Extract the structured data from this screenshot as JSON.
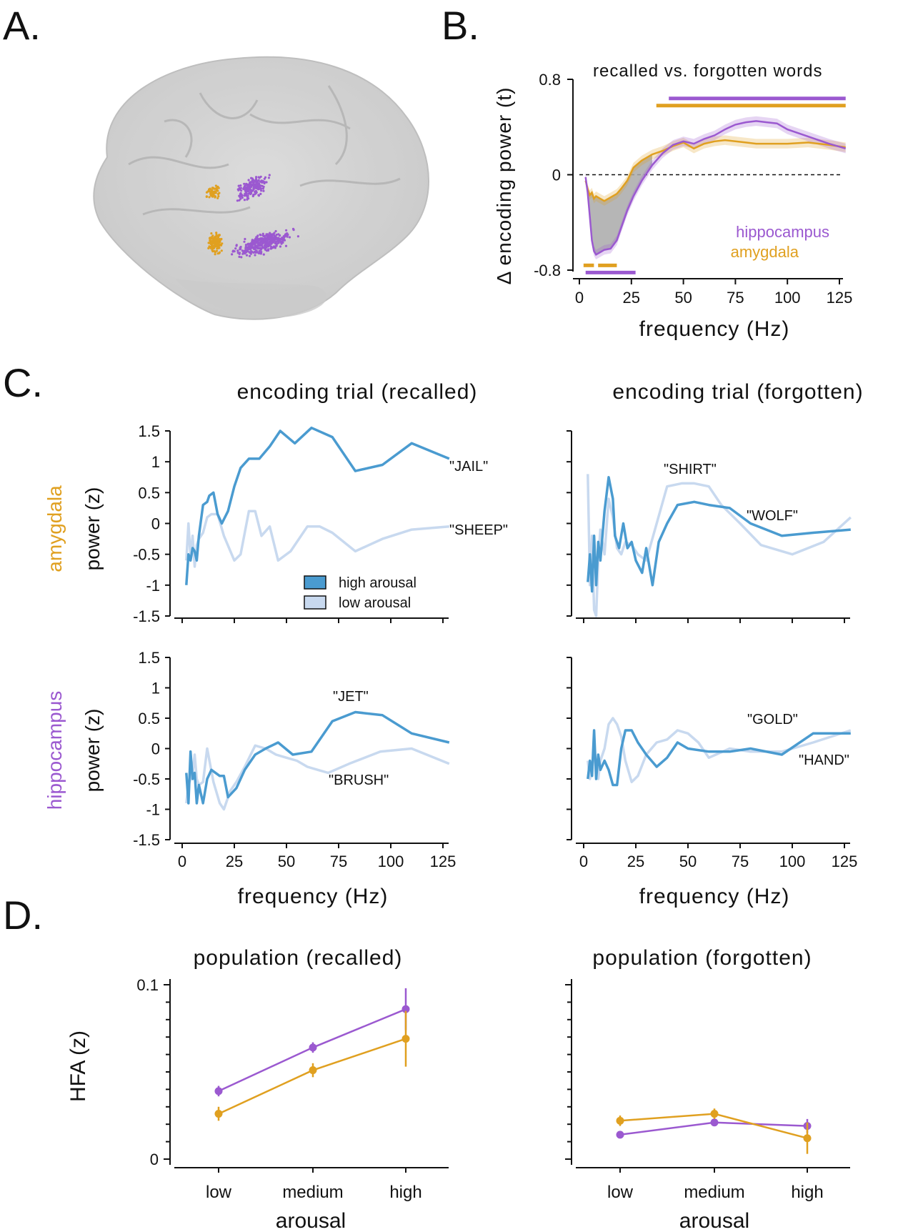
{
  "panels": {
    "a": "A.",
    "b": "B.",
    "c": "C.",
    "d": "D."
  },
  "colors": {
    "purple": "#9b59d0",
    "orange": "#e0a020",
    "blue_high": "#4a9bd0",
    "blue_low": "#c8d9ef",
    "shade": "#a9a9a9"
  },
  "panel_b": {
    "title": "recalled vs. forgotten words",
    "ylabel": "Δ encoding power (t)",
    "xlabel": "frequency (Hz)",
    "legend_hippocampus": "hippocampus",
    "legend_amygdala": "amygdala"
  },
  "panel_c": {
    "title_recalled": "encoding trial (recalled)",
    "title_forgotten": "encoding trial (forgotten)",
    "row_amygdala": "amygdala",
    "row_hippocampus": "hippocampus",
    "ylabel": "power (z)",
    "xlabel": "frequency (Hz)",
    "legend_high": "high arousal",
    "legend_low": "low arousal",
    "words": {
      "amy_rec_high": "\"JAIL\"",
      "amy_rec_low": "\"SHEEP\"",
      "amy_for_low": "\"SHIRT\"",
      "amy_for_high": "\"WOLF\"",
      "hip_rec_high": "\"JET\"",
      "hip_rec_low": "\"BRUSH\"",
      "hip_for_low": "\"GOLD\"",
      "hip_for_high": "\"HAND\""
    }
  },
  "panel_d": {
    "title_recalled": "population (recalled)",
    "title_forgotten": "population (forgotten)",
    "ylabel": "HFA (z)",
    "xlabel": "arousal"
  },
  "chart_data": [
    {
      "id": "B",
      "type": "line",
      "title": "recalled vs. forgotten words",
      "xlabel": "frequency (Hz)",
      "ylabel": "Δ encoding power (t)",
      "xlim": [
        -2,
        130
      ],
      "ylim": [
        -0.82,
        0.8
      ],
      "xticks": [
        0,
        25,
        50,
        75,
        100,
        125
      ],
      "yticks": [
        -0.8,
        0,
        0.8
      ],
      "series": [
        {
          "name": "hippocampus",
          "x": [
            3,
            4,
            5,
            6,
            7,
            8,
            10,
            12,
            15,
            18,
            20,
            23,
            26,
            30,
            35,
            40,
            45,
            50,
            55,
            60,
            65,
            70,
            75,
            80,
            85,
            90,
            95,
            100,
            110,
            120,
            128
          ],
          "y": [
            -0.02,
            -0.15,
            -0.35,
            -0.55,
            -0.64,
            -0.67,
            -0.65,
            -0.63,
            -0.62,
            -0.55,
            -0.45,
            -0.3,
            -0.18,
            -0.05,
            0.08,
            0.18,
            0.25,
            0.28,
            0.26,
            0.3,
            0.33,
            0.38,
            0.42,
            0.44,
            0.45,
            0.44,
            0.43,
            0.38,
            0.32,
            0.26,
            0.22
          ],
          "err": 0.04
        },
        {
          "name": "amygdala",
          "x": [
            3,
            4,
            5,
            6,
            7,
            8,
            10,
            12,
            15,
            18,
            20,
            23,
            26,
            30,
            35,
            40,
            45,
            50,
            55,
            60,
            65,
            70,
            75,
            80,
            85,
            90,
            95,
            100,
            110,
            120,
            128
          ],
          "y": [
            -0.05,
            -0.12,
            -0.17,
            -0.15,
            -0.2,
            -0.18,
            -0.2,
            -0.22,
            -0.19,
            -0.16,
            -0.12,
            -0.05,
            0.06,
            0.12,
            0.17,
            0.2,
            0.24,
            0.27,
            0.22,
            0.26,
            0.28,
            0.29,
            0.28,
            0.27,
            0.26,
            0.26,
            0.26,
            0.26,
            0.27,
            0.25,
            0.23
          ],
          "err": 0.04
        }
      ],
      "significance_bars": [
        {
          "series": "hippocampus",
          "x": [
            43,
            128
          ],
          "y": 0.64
        },
        {
          "series": "amygdala",
          "x": [
            37,
            128
          ],
          "y": 0.58
        },
        {
          "series": "amygdala",
          "x": [
            2,
            7
          ],
          "y": -0.76
        },
        {
          "series": "amygdala",
          "x": [
            9,
            18
          ],
          "y": -0.76
        },
        {
          "series": "hippocampus",
          "x": [
            3,
            27
          ],
          "y": -0.82
        }
      ]
    },
    {
      "id": "C-amygdala-recalled",
      "type": "line",
      "xlim": [
        -2,
        132
      ],
      "ylim": [
        -1.5,
        1.5
      ],
      "xticks": [
        0,
        25,
        50,
        75,
        100,
        125
      ],
      "yticks": [
        -1.5,
        -1,
        -0.5,
        0,
        0.5,
        1,
        1.5
      ],
      "series": [
        {
          "name": "\"JAIL\"",
          "arousal": "high",
          "x": [
            2,
            3,
            4,
            5,
            6,
            7,
            8,
            10,
            12,
            13,
            15,
            17,
            19,
            22,
            25,
            28,
            32,
            37,
            42,
            47,
            54,
            62,
            72,
            83,
            96,
            110,
            128
          ],
          "y": [
            -1.0,
            -0.5,
            -0.6,
            -0.4,
            -0.45,
            -0.6,
            -0.2,
            0.3,
            0.35,
            0.45,
            0.5,
            0.15,
            0.0,
            0.2,
            0.6,
            0.9,
            1.05,
            1.05,
            1.25,
            1.5,
            1.3,
            1.55,
            1.4,
            0.85,
            0.95,
            1.3,
            1.05
          ]
        },
        {
          "name": "\"SHEEP\"",
          "arousal": "low",
          "x": [
            2,
            3,
            4,
            5,
            6,
            7,
            8,
            10,
            12,
            14,
            17,
            20,
            25,
            28,
            32,
            35,
            38,
            42,
            46,
            52,
            60,
            66,
            72,
            83,
            96,
            110,
            128
          ],
          "y": [
            -0.6,
            0.0,
            -0.55,
            -0.2,
            -0.7,
            -0.35,
            -0.25,
            -0.15,
            0.1,
            0.15,
            0.15,
            -0.2,
            -0.6,
            -0.5,
            0.2,
            0.2,
            -0.2,
            -0.05,
            -0.6,
            -0.45,
            -0.05,
            -0.05,
            -0.15,
            -0.45,
            -0.25,
            -0.1,
            -0.05
          ]
        }
      ]
    },
    {
      "id": "C-amygdala-forgotten",
      "type": "line",
      "xlim": [
        -2,
        132
      ],
      "ylim": [
        -1.5,
        1.5
      ],
      "series": [
        {
          "name": "\"WOLF\"",
          "arousal": "high",
          "x": [
            2,
            3,
            4,
            5,
            6,
            7,
            8,
            10,
            12,
            14,
            15,
            17,
            19,
            21,
            23,
            25,
            28,
            30,
            33,
            36,
            40,
            45,
            53,
            60,
            70,
            80,
            95,
            110,
            128
          ],
          "y": [
            -0.95,
            -0.5,
            -1.1,
            -0.2,
            -1.0,
            -0.3,
            -0.6,
            0.2,
            0.75,
            0.4,
            -0.2,
            -0.4,
            0.0,
            -0.4,
            -0.3,
            -0.6,
            -0.8,
            -0.4,
            -1.0,
            -0.3,
            0.0,
            0.3,
            0.35,
            0.3,
            0.25,
            0.0,
            -0.2,
            -0.15,
            -0.1
          ]
        },
        {
          "name": "\"SHIRT\"",
          "arousal": "low",
          "x": [
            2,
            3,
            4,
            5,
            6,
            7,
            8,
            10,
            12,
            14,
            16,
            18,
            20,
            23,
            26,
            30,
            35,
            40,
            47,
            53,
            60,
            66,
            75,
            85,
            100,
            115,
            128
          ],
          "y": [
            0.8,
            -1.0,
            -0.2,
            -1.4,
            -1.5,
            -0.6,
            -0.1,
            -0.5,
            0.4,
            0.1,
            -0.4,
            -0.5,
            -0.3,
            -0.35,
            -0.5,
            -0.6,
            0.0,
            0.6,
            0.65,
            0.65,
            0.6,
            0.3,
            0.0,
            -0.35,
            -0.5,
            -0.3,
            0.1
          ]
        }
      ]
    },
    {
      "id": "C-hippocampus-recalled",
      "type": "line",
      "xlim": [
        -2,
        132
      ],
      "ylim": [
        -1.5,
        1.5
      ],
      "series": [
        {
          "name": "\"JET\"",
          "arousal": "high",
          "x": [
            2,
            3,
            4,
            5,
            6,
            7,
            8,
            10,
            12,
            14,
            18,
            20,
            22,
            26,
            30,
            35,
            40,
            46,
            53,
            62,
            72,
            83,
            96,
            110,
            128
          ],
          "y": [
            -0.4,
            -0.9,
            -0.05,
            -0.5,
            -0.4,
            -0.9,
            -0.6,
            -0.9,
            -0.5,
            -0.35,
            -0.45,
            -0.45,
            -0.8,
            -0.65,
            -0.35,
            -0.1,
            0.0,
            0.1,
            -0.1,
            -0.05,
            0.45,
            0.6,
            0.55,
            0.25,
            0.1
          ]
        },
        {
          "name": "\"BRUSH\"",
          "arousal": "low",
          "x": [
            2,
            3,
            4,
            5,
            6,
            7,
            8,
            10,
            12,
            15,
            18,
            20,
            23,
            26,
            30,
            35,
            40,
            45,
            50,
            55,
            60,
            65,
            70,
            80,
            95,
            110,
            128
          ],
          "y": [
            -0.9,
            -0.6,
            -0.5,
            -0.4,
            -0.1,
            -0.5,
            -0.6,
            -0.55,
            0.0,
            -0.55,
            -0.9,
            -1.0,
            -0.7,
            -0.55,
            -0.3,
            0.05,
            0.0,
            -0.1,
            -0.15,
            -0.2,
            -0.3,
            -0.35,
            -0.4,
            -0.25,
            -0.05,
            0.0,
            -0.25
          ]
        }
      ]
    },
    {
      "id": "C-hippocampus-forgotten",
      "type": "line",
      "xlim": [
        -2,
        132
      ],
      "ylim": [
        -1.5,
        1.5
      ],
      "series": [
        {
          "name": "\"HAND\"",
          "arousal": "high",
          "x": [
            2,
            3,
            4,
            5,
            6,
            7,
            8,
            10,
            12,
            14,
            16,
            18,
            20,
            23,
            26,
            30,
            35,
            40,
            45,
            50,
            60,
            70,
            80,
            95,
            110,
            128
          ],
          "y": [
            -0.5,
            -0.2,
            -0.45,
            0.3,
            -0.5,
            -0.1,
            -0.35,
            -0.2,
            -0.35,
            -0.6,
            -0.6,
            0.0,
            0.3,
            0.3,
            0.1,
            -0.1,
            -0.3,
            -0.15,
            0.1,
            0.0,
            -0.05,
            -0.05,
            0.0,
            -0.1,
            0.25,
            0.25
          ]
        },
        {
          "name": "\"GOLD\"",
          "arousal": "low",
          "x": [
            2,
            3,
            4,
            5,
            6,
            7,
            8,
            10,
            12,
            14,
            16,
            18,
            20,
            23,
            26,
            30,
            35,
            40,
            45,
            50,
            55,
            60,
            70,
            80,
            95,
            110,
            128
          ],
          "y": [
            -0.2,
            -0.5,
            -0.3,
            0.0,
            -0.4,
            -0.5,
            -0.2,
            0.0,
            0.4,
            0.5,
            0.4,
            0.2,
            -0.2,
            -0.55,
            -0.45,
            -0.1,
            0.1,
            0.15,
            0.3,
            0.25,
            0.1,
            -0.15,
            0.0,
            -0.05,
            -0.05,
            0.1,
            0.3
          ]
        }
      ]
    },
    {
      "id": "D-recalled",
      "type": "line",
      "title": "population (recalled)",
      "categories": [
        "low",
        "medium",
        "high"
      ],
      "xlabel": "arousal",
      "ylabel": "HFA (z)",
      "ylim": [
        0,
        0.1
      ],
      "yticks": [
        0,
        0.1
      ],
      "series": [
        {
          "name": "hippocampus",
          "values": [
            0.039,
            0.064,
            0.086
          ],
          "err": [
            0.003,
            0.003,
            0.012
          ]
        },
        {
          "name": "amygdala",
          "values": [
            0.026,
            0.051,
            0.069
          ],
          "err": [
            0.004,
            0.004,
            0.016
          ]
        }
      ]
    },
    {
      "id": "D-forgotten",
      "type": "line",
      "title": "population (forgotten)",
      "categories": [
        "low",
        "medium",
        "high"
      ],
      "xlabel": "arousal",
      "ylim": [
        0,
        0.1
      ],
      "series": [
        {
          "name": "hippocampus",
          "values": [
            0.014,
            0.021,
            0.019
          ],
          "err": [
            0.002,
            0.002,
            0.004
          ]
        },
        {
          "name": "amygdala",
          "values": [
            0.022,
            0.026,
            0.012
          ],
          "err": [
            0.003,
            0.003,
            0.009
          ]
        }
      ]
    }
  ]
}
